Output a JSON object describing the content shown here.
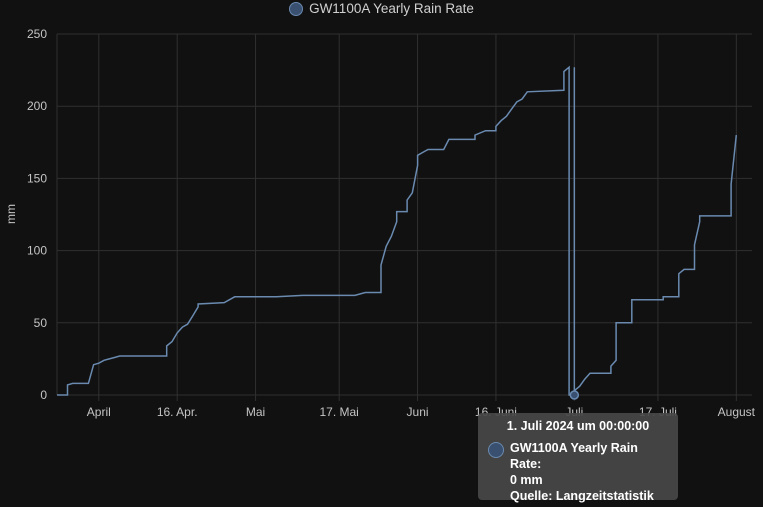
{
  "legend": {
    "series_name": "GW1100A Yearly Rain Rate",
    "color": "#6a8ab0"
  },
  "tooltip": {
    "title": "1. Juli 2024 um 00:00:00",
    "series": "GW1100A Yearly Rain Rate:",
    "value": "0 mm",
    "source": "Quelle: Langzeitstatistik"
  },
  "chart_data": {
    "type": "line",
    "title": "",
    "xlabel": "",
    "ylabel": "mm",
    "ylim": [
      0,
      250
    ],
    "yticks": [
      0,
      50,
      100,
      150,
      200,
      250
    ],
    "xlim": [
      "2024-03-24",
      "2024-08-04"
    ],
    "xticks": [
      {
        "date": "2024-04-01",
        "label": "April"
      },
      {
        "date": "2024-04-16",
        "label": "16. Apr."
      },
      {
        "date": "2024-05-01",
        "label": "Mai"
      },
      {
        "date": "2024-05-17",
        "label": "17. Mai"
      },
      {
        "date": "2024-06-01",
        "label": "Juni"
      },
      {
        "date": "2024-06-16",
        "label": "16. Juni"
      },
      {
        "date": "2024-07-01",
        "label": "Juli"
      },
      {
        "date": "2024-07-17",
        "label": "17. Juli"
      },
      {
        "date": "2024-08-01",
        "label": "August"
      }
    ],
    "grid": true,
    "legend_position": "top-center",
    "series": [
      {
        "name": "GW1100A Yearly Rain Rate",
        "color": "#6a8ab0",
        "points": [
          [
            "2024-03-24",
            0
          ],
          [
            "2024-03-26",
            0
          ],
          [
            "2024-03-26",
            7
          ],
          [
            "2024-03-27",
            8
          ],
          [
            "2024-03-30",
            8
          ],
          [
            "2024-03-31",
            21
          ],
          [
            "2024-04-01",
            22
          ],
          [
            "2024-04-02",
            24
          ],
          [
            "2024-04-03",
            25
          ],
          [
            "2024-04-04",
            26
          ],
          [
            "2024-04-05",
            27
          ],
          [
            "2024-04-14",
            27
          ],
          [
            "2024-04-14",
            34
          ],
          [
            "2024-04-15",
            37
          ],
          [
            "2024-04-16",
            43
          ],
          [
            "2024-04-17",
            47
          ],
          [
            "2024-04-18",
            49
          ],
          [
            "2024-04-19",
            55
          ],
          [
            "2024-04-20",
            61
          ],
          [
            "2024-04-20",
            63
          ],
          [
            "2024-04-25",
            64
          ],
          [
            "2024-04-27",
            68
          ],
          [
            "2024-05-05",
            68
          ],
          [
            "2024-05-10",
            69
          ],
          [
            "2024-05-20",
            69
          ],
          [
            "2024-05-22",
            71
          ],
          [
            "2024-05-25",
            71
          ],
          [
            "2024-05-25",
            90
          ],
          [
            "2024-05-26",
            103
          ],
          [
            "2024-05-27",
            110
          ],
          [
            "2024-05-28",
            120
          ],
          [
            "2024-05-28",
            127
          ],
          [
            "2024-05-30",
            127
          ],
          [
            "2024-05-30",
            135
          ],
          [
            "2024-05-31",
            140
          ],
          [
            "2024-06-01",
            159
          ],
          [
            "2024-06-01",
            166
          ],
          [
            "2024-06-02",
            168
          ],
          [
            "2024-06-03",
            170
          ],
          [
            "2024-06-06",
            170
          ],
          [
            "2024-06-07",
            177
          ],
          [
            "2024-06-12",
            177
          ],
          [
            "2024-06-12",
            180
          ],
          [
            "2024-06-14",
            183
          ],
          [
            "2024-06-16",
            183
          ],
          [
            "2024-06-16",
            186
          ],
          [
            "2024-06-17",
            190
          ],
          [
            "2024-06-18",
            193
          ],
          [
            "2024-06-19",
            198
          ],
          [
            "2024-06-20",
            203
          ],
          [
            "2024-06-21",
            205
          ],
          [
            "2024-06-22",
            210
          ],
          [
            "2024-06-29",
            211
          ],
          [
            "2024-06-29",
            224
          ],
          [
            "2024-06-30",
            227
          ],
          [
            "2024-06-30",
            0
          ],
          [
            "2024-07-01",
            0
          ],
          [
            "2024-07-01",
            3
          ],
          [
            "2024-07-02",
            6
          ],
          [
            "2024-07-03",
            11
          ],
          [
            "2024-07-04",
            15
          ],
          [
            "2024-07-08",
            15
          ],
          [
            "2024-07-08",
            20
          ],
          [
            "2024-07-09",
            24
          ],
          [
            "2024-07-09",
            50
          ],
          [
            "2024-07-12",
            50
          ],
          [
            "2024-07-12",
            66
          ],
          [
            "2024-07-18",
            66
          ],
          [
            "2024-07-18",
            68
          ],
          [
            "2024-07-21",
            68
          ],
          [
            "2024-07-21",
            84
          ],
          [
            "2024-07-22",
            87
          ],
          [
            "2024-07-24",
            87
          ],
          [
            "2024-07-24",
            104
          ],
          [
            "2024-07-25",
            120
          ],
          [
            "2024-07-25",
            124
          ],
          [
            "2024-07-31",
            124
          ],
          [
            "2024-07-31",
            146
          ],
          [
            "2024-08-01",
            180
          ]
        ]
      }
    ],
    "highlight": {
      "date": "2024-07-01",
      "value": 0
    }
  }
}
